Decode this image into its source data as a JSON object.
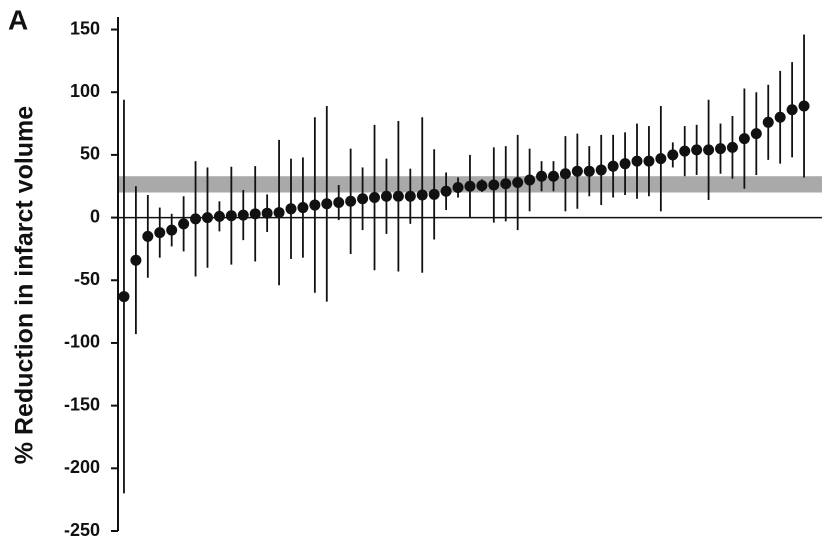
{
  "chart_data": {
    "type": "errorbar",
    "panel_label": "A",
    "y_label": "% Reduction in infarct volume",
    "categories": [
      null,
      null,
      null,
      null,
      null,
      null,
      null,
      null,
      null,
      null,
      null,
      null,
      null,
      null,
      null,
      null,
      null,
      null,
      null,
      null,
      null,
      null,
      null,
      null,
      null,
      null,
      null,
      null,
      null,
      null,
      null,
      null,
      null,
      null,
      null,
      null,
      null,
      null,
      null,
      null,
      null,
      null,
      null,
      null,
      null,
      null,
      null,
      null,
      null,
      null,
      null,
      null,
      null,
      null,
      null,
      null,
      null,
      null
    ],
    "values": [
      -63,
      -34,
      -15,
      -12,
      -10,
      -5,
      -1,
      0,
      1,
      1.5,
      2,
      3,
      3.5,
      4,
      7,
      8,
      10,
      11,
      12,
      13,
      15,
      16,
      17,
      17,
      17,
      18,
      18.5,
      21,
      24,
      25,
      25.5,
      26,
      27,
      28,
      30,
      33,
      33,
      35,
      37,
      37,
      38,
      41,
      43,
      45,
      45,
      47,
      50,
      53,
      54,
      54,
      55,
      56,
      63,
      67,
      76,
      80,
      86,
      89
    ],
    "errors": [
      157,
      59,
      33,
      20,
      13,
      22,
      46,
      40,
      12,
      39,
      20,
      38,
      15,
      58,
      40,
      40,
      70,
      78,
      14,
      42,
      25,
      58,
      30,
      60,
      22,
      62,
      36,
      15,
      8,
      25,
      5,
      30,
      30,
      38,
      25,
      12,
      12,
      30,
      30,
      20,
      28,
      25,
      25,
      30,
      28,
      42,
      10,
      20,
      20,
      40,
      20,
      25,
      40,
      33,
      30,
      37,
      38,
      57
    ],
    "color": "#111111",
    "reference_band": [
      20,
      33
    ],
    "band_color": "#a9a9a9",
    "ylim": [
      -250,
      160
    ],
    "yticks": [
      150,
      100,
      50,
      0,
      -50,
      -100,
      -150,
      -200,
      -250
    ]
  }
}
